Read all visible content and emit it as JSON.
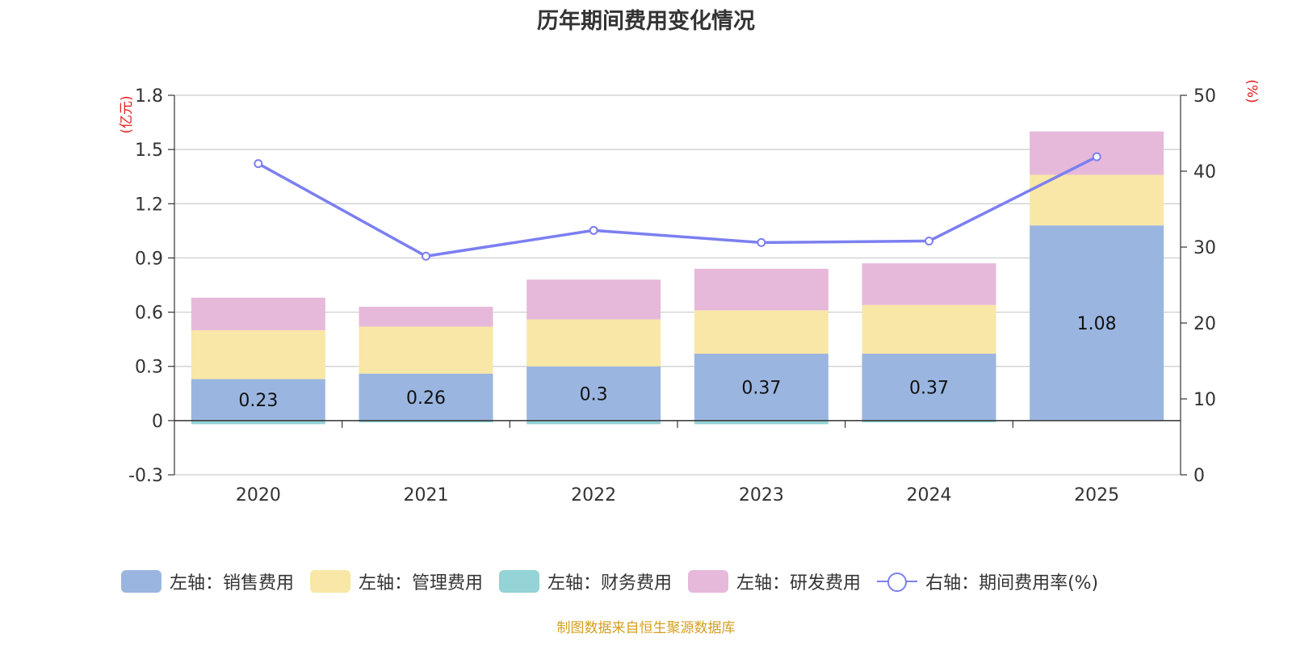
{
  "chart_data": {
    "type": "bar",
    "title": "历年期间费用变化情况",
    "categories": [
      "2020",
      "2021",
      "2022",
      "2023",
      "2024",
      "2025"
    ],
    "left_axis": {
      "unit_label": "(亿元)",
      "ticks": [
        "1.8",
        "1.5",
        "1.2",
        "0.9",
        "0.6",
        "0.3",
        "0",
        "-0.3"
      ],
      "ylim": [
        -0.3,
        1.8
      ]
    },
    "right_axis": {
      "unit_label": "(%)",
      "ticks": [
        "50",
        "40",
        "30",
        "20",
        "10",
        "0"
      ],
      "ylim": [
        0,
        50
      ]
    },
    "series": [
      {
        "name": "销售费用",
        "legend": "左轴：销售费用",
        "axis": "left",
        "type": "bar",
        "color": "#9ab6e0",
        "values": [
          0.23,
          0.26,
          0.3,
          0.37,
          0.37,
          1.08
        ],
        "labels": [
          "0.23",
          "0.26",
          "0.3",
          "0.37",
          "0.37",
          "1.08"
        ]
      },
      {
        "name": "管理费用",
        "legend": "左轴：管理费用",
        "axis": "left",
        "type": "bar",
        "color": "#f8e7a6",
        "values": [
          0.27,
          0.26,
          0.26,
          0.24,
          0.27,
          0.28
        ]
      },
      {
        "name": "财务费用",
        "legend": "左轴：财务费用",
        "axis": "left",
        "type": "bar",
        "color": "#94d3d6",
        "values": [
          -0.02,
          -0.01,
          -0.02,
          -0.02,
          -0.01,
          0.0
        ]
      },
      {
        "name": "研发费用",
        "legend": "左轴：研发费用",
        "axis": "left",
        "type": "bar",
        "color": "#e6b9da",
        "values": [
          0.18,
          0.11,
          0.22,
          0.23,
          0.23,
          0.24
        ]
      },
      {
        "name": "期间费用率(%)",
        "legend": "右轴：期间费用率(%)",
        "axis": "right",
        "type": "line",
        "color": "#7b7ff0",
        "values": [
          41.0,
          28.8,
          32.2,
          30.6,
          30.8,
          41.9
        ]
      }
    ]
  },
  "source": "制图数据来自恒生聚源数据库"
}
